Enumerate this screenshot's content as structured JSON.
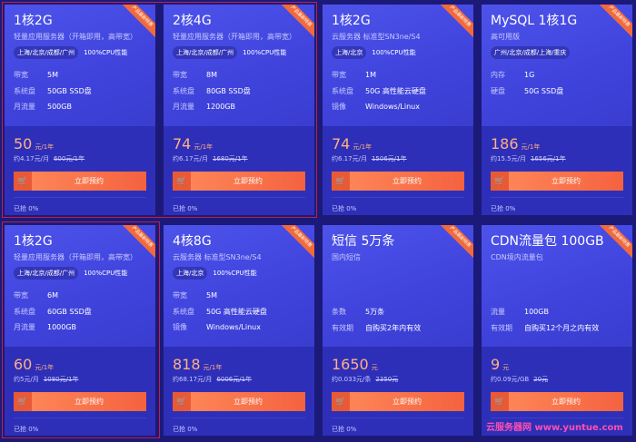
{
  "ribbon": "产品最新特惠",
  "button_label": "立即预约",
  "watermark": "云服务器网 www.yuntue.com",
  "cards": [
    {
      "title": "1核2G",
      "sub": "轻量应用服务器（开箱即用，高带宽）",
      "tags": [
        "上海/北京/成都/广州",
        "100%CPU性能"
      ],
      "specs": [
        [
          "带宽",
          "5M"
        ],
        [
          "系统盘",
          "50GB SSD盘"
        ],
        [
          "月流量",
          "500GB"
        ]
      ],
      "price": "50",
      "unit": "元/1年",
      "per": "约4.17元/月",
      "orig": "600元/1年",
      "sold": "已抢 0%"
    },
    {
      "title": "2核4G",
      "sub": "轻量应用服务器（开箱即用，高带宽）",
      "tags": [
        "上海/北京/成都/广州",
        "100%CPU性能"
      ],
      "specs": [
        [
          "带宽",
          "8M"
        ],
        [
          "系统盘",
          "80GB SSD盘"
        ],
        [
          "月流量",
          "1200GB"
        ]
      ],
      "price": "74",
      "unit": "元/1年",
      "per": "约6.17元/月",
      "orig": "1680元/1年",
      "sold": "已抢 0%"
    },
    {
      "title": "1核2G",
      "sub": "云服务器 标准型SN3ne/S4",
      "tags": [
        "上海/北京",
        "100%CPU性能"
      ],
      "specs": [
        [
          "带宽",
          "1M"
        ],
        [
          "系统盘",
          "50G 高性能云硬盘"
        ],
        [
          "镜像",
          "Windows/Linux"
        ]
      ],
      "price": "74",
      "unit": "元/1年",
      "per": "约6.17元/月",
      "orig": "1506元/1年",
      "sold": "已抢 0%"
    },
    {
      "title": "MySQL 1核1G",
      "sub": "高可用版",
      "tags": [
        "广州/北京/成都/上海/重庆"
      ],
      "specs": [
        [
          "内存",
          "1G"
        ],
        [
          "硬盘",
          "50G SSD盘"
        ]
      ],
      "price": "186",
      "unit": "元/1年",
      "per": "约15.5元/月",
      "orig": "1656元/1年",
      "sold": "已抢 0%"
    },
    {
      "title": "1核2G",
      "sub": "轻量应用服务器（开箱即用，高带宽）",
      "tags": [
        "上海/北京/成都/广州",
        "100%CPU性能"
      ],
      "specs": [
        [
          "带宽",
          "6M"
        ],
        [
          "系统盘",
          "60GB SSD盘"
        ],
        [
          "月流量",
          "1000GB"
        ]
      ],
      "price": "60",
      "unit": "元/1年",
      "per": "约5元/月",
      "orig": "1080元/1年",
      "sold": "已抢 0%"
    },
    {
      "title": "4核8G",
      "sub": "云服务器 标准型SN3ne/S4",
      "tags": [
        "上海/北京",
        "100%CPU性能"
      ],
      "specs": [
        [
          "带宽",
          "5M"
        ],
        [
          "系统盘",
          "50G 高性能云硬盘"
        ],
        [
          "镜像",
          "Windows/Linux"
        ]
      ],
      "price": "818",
      "unit": "元/1年",
      "per": "约68.17元/月",
      "orig": "6006元/1年",
      "sold": "已抢 0%"
    },
    {
      "title": "短信 5万条",
      "sub": "国内短信",
      "tags": [],
      "specs": [
        [
          "条数",
          "5万条"
        ],
        [
          "有效期",
          "自购买2年内有效"
        ]
      ],
      "price": "1650",
      "unit": "元",
      "per": "约0.033元/条",
      "orig": "2350元",
      "sold": "已抢 0%"
    },
    {
      "title": "CDN流量包 100GB",
      "sub": "CDN境内流量包",
      "tags": [],
      "specs": [
        [
          "流量",
          "100GB"
        ],
        [
          "有效期",
          "自购买12个月之内有效"
        ]
      ],
      "price": "9",
      "unit": "元",
      "per": "约0.09元/GB",
      "orig": "20元",
      "sold": ""
    }
  ]
}
